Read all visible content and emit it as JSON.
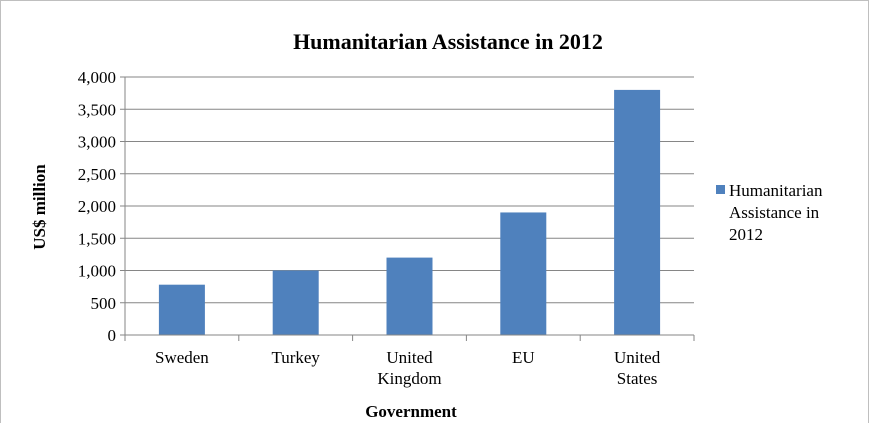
{
  "chart_data": {
    "type": "bar",
    "title": "Humanitarian Assistance in 2012",
    "xlabel": "Government",
    "ylabel": "US$ million",
    "categories": [
      [
        "Sweden"
      ],
      [
        "Turkey"
      ],
      [
        "United",
        "Kingdom"
      ],
      [
        "EU"
      ],
      [
        "United",
        "States"
      ]
    ],
    "series": [
      {
        "name": [
          "Humanitarian",
          "Assistance in",
          "2012"
        ],
        "values": [
          780,
          1000,
          1200,
          1900,
          3800
        ],
        "color": "#4f81bd"
      }
    ],
    "ylim": [
      0,
      4000
    ],
    "yticks": [
      "0",
      "500",
      "1,000",
      "1,500",
      "2,000",
      "2,500",
      "3,000",
      "3,500",
      "4,000"
    ],
    "grid": true,
    "legend_position": "right"
  }
}
